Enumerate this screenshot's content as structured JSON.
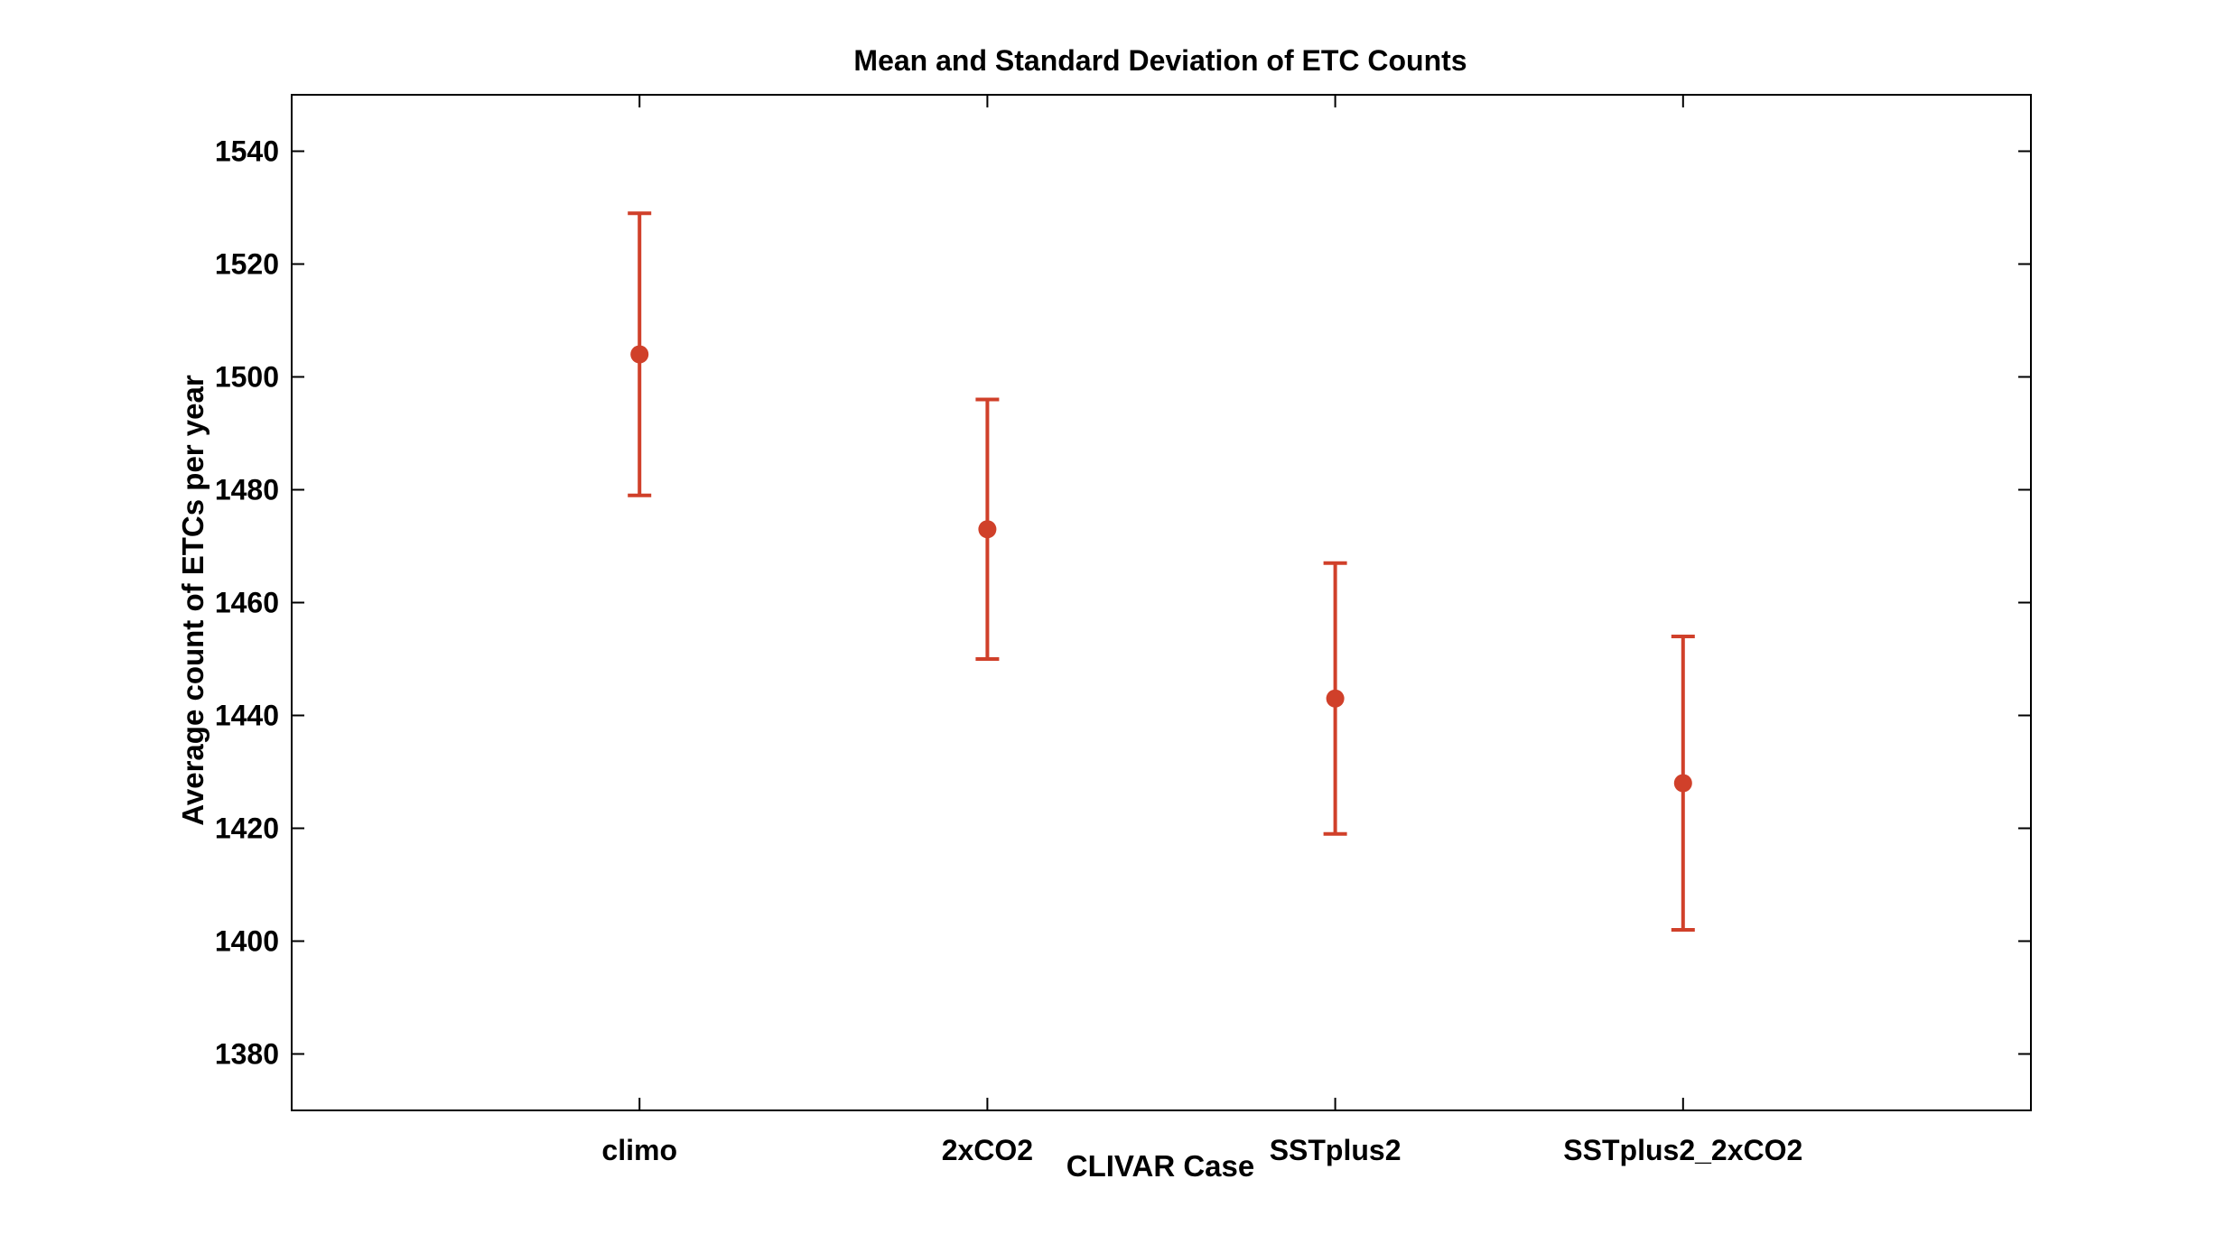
{
  "chart_data": {
    "type": "scatter",
    "title": "Mean and Standard Deviation of ETC Counts",
    "xlabel": "CLIVAR Case",
    "ylabel": "Average count of ETCs per year",
    "categories": [
      "climo",
      "2xCO2",
      "SSTplus2",
      "SSTplus2_2xCO2"
    ],
    "series": [
      {
        "means": [
          1504,
          1473,
          1443,
          1428
        ],
        "lower": [
          1479,
          1450,
          1419,
          1402
        ],
        "upper": [
          1529,
          1496,
          1467,
          1454
        ]
      }
    ],
    "ylim": [
      1370,
      1550
    ],
    "yticks": [
      1380,
      1400,
      1420,
      1440,
      1460,
      1480,
      1500,
      1520,
      1540
    ],
    "grid": false,
    "legend": "none",
    "error_bars": true,
    "marker_color": "#d0402a",
    "axis_color": "#000000"
  }
}
